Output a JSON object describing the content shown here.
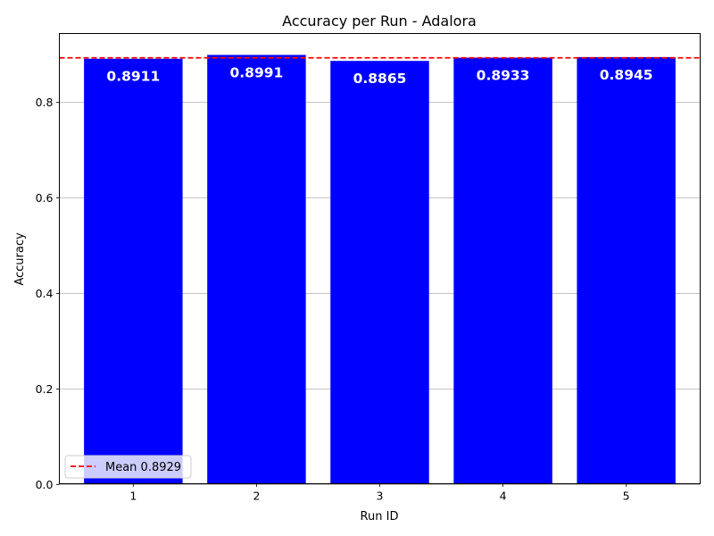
{
  "chart_data": {
    "type": "bar",
    "title": "Accuracy per Run - Adalora",
    "xlabel": "Run ID",
    "ylabel": "Accuracy",
    "categories": [
      "1",
      "2",
      "3",
      "4",
      "5"
    ],
    "values": [
      0.8911,
      0.8991,
      0.8865,
      0.8933,
      0.8945
    ],
    "value_labels": [
      "0.8911",
      "0.8991",
      "0.8865",
      "0.8933",
      "0.8945"
    ],
    "ylim": [
      0,
      0.944
    ],
    "yticks": [
      0.0,
      0.2,
      0.4,
      0.6,
      0.8
    ],
    "ytick_labels": [
      "0.0",
      "0.2",
      "0.4",
      "0.6",
      "0.8"
    ],
    "grid": "y-major",
    "bar_color": "#0000ff",
    "mean": {
      "value": 0.8929,
      "label": "Mean 0.8929",
      "color": "#ff0000",
      "style": "dashed"
    },
    "legend": {
      "placement": "lower-left",
      "entries": [
        "Mean 0.8929"
      ]
    }
  }
}
